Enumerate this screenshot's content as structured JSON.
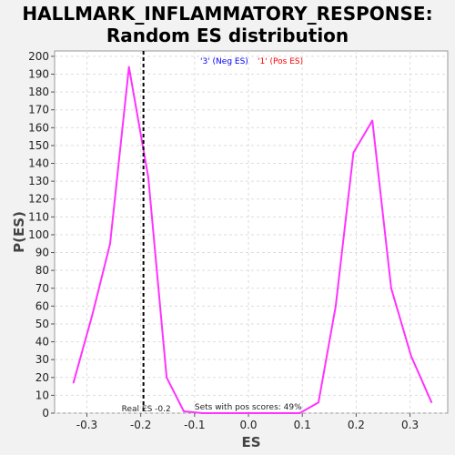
{
  "chart_data": {
    "type": "line",
    "title_lines": [
      "HALLMARK_INFLAMMATORY_RESPONSE:",
      "Random ES distribution"
    ],
    "xlabel": "ES",
    "ylabel": "P(ES)",
    "xlim": [
      -0.36,
      0.37
    ],
    "ylim": [
      0,
      203
    ],
    "xticks": [
      -0.3,
      -0.2,
      -0.1,
      0.0,
      0.1,
      0.2,
      0.3
    ],
    "xtick_labels": [
      "-0.3",
      "-0.2",
      "-0.1",
      "0.0",
      "0.1",
      "0.2",
      "0.3"
    ],
    "yticks": [
      0,
      10,
      20,
      30,
      40,
      50,
      60,
      70,
      80,
      90,
      100,
      110,
      120,
      130,
      140,
      150,
      160,
      170,
      180,
      190,
      200
    ],
    "grid": true,
    "series": [
      {
        "color": "#ff33ff",
        "points": [
          [
            -0.325,
            17
          ],
          [
            -0.29,
            55
          ],
          [
            -0.257,
            95
          ],
          [
            -0.222,
            194
          ],
          [
            -0.186,
            132
          ],
          [
            -0.152,
            20
          ],
          [
            -0.12,
            1
          ],
          [
            -0.085,
            0
          ],
          [
            -0.05,
            0
          ],
          [
            0.06,
            0
          ],
          [
            0.095,
            0
          ],
          [
            0.13,
            6
          ],
          [
            0.162,
            60
          ],
          [
            0.195,
            146
          ],
          [
            0.23,
            164
          ],
          [
            0.265,
            70
          ],
          [
            0.302,
            32
          ],
          [
            0.34,
            6
          ]
        ]
      }
    ],
    "real_es_x": -0.195,
    "real_es_label": "Real ES -0.2",
    "pos_scores_label": "Sets with pos scores: 49%",
    "legend": [
      {
        "text": "'3' (Neg ES)",
        "color": "#0000ff"
      },
      {
        "text": "'1' (Pos ES)",
        "color": "#ff0000"
      }
    ],
    "legend_position": "top-center",
    "colors": {
      "plot_background": "#ffffff",
      "page_background": "#f2f2f2",
      "grid": "#dddddd"
    }
  }
}
